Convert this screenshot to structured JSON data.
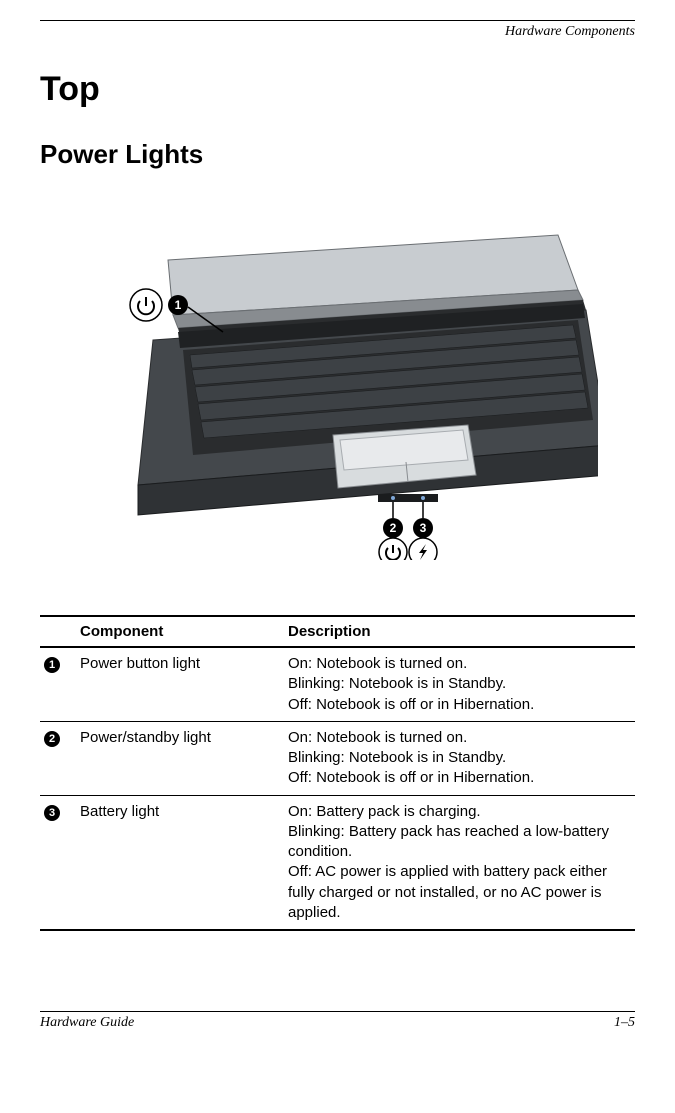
{
  "header": {
    "section_title": "Hardware Components"
  },
  "headings": {
    "h1": "Top",
    "h2": "Power Lights"
  },
  "diagram": {
    "callouts": {
      "c1": "1",
      "c2": "2",
      "c3": "3"
    },
    "icons": {
      "power": "⏻",
      "lightning": "⚡"
    }
  },
  "table": {
    "headers": {
      "component": "Component",
      "description": "Description"
    },
    "rows": [
      {
        "num": "1",
        "component": "Power button light",
        "description": "On: Notebook is turned on.\nBlinking: Notebook is in Standby.\nOff: Notebook is off or in Hibernation."
      },
      {
        "num": "2",
        "component": "Power/standby light",
        "description": "On: Notebook is turned on.\nBlinking: Notebook is in Standby.\nOff: Notebook is off or in Hibernation."
      },
      {
        "num": "3",
        "component": "Battery light",
        "description": "On: Battery pack is charging.\nBlinking: Battery pack has reached a low-battery condition.\nOff: AC power is applied with battery pack either fully charged or not installed, or no AC power is applied."
      }
    ]
  },
  "footer": {
    "left": "Hardware Guide",
    "right": "1–5"
  },
  "colors": {
    "laptop_dark": "#3a3e42",
    "laptop_mid": "#5a5e62",
    "laptop_light": "#c8ccd0",
    "laptop_silver": "#d8dcde",
    "screen": "#1a1c1e",
    "key": "#2f3235",
    "callout_bg": "#000000",
    "callout_fg": "#ffffff",
    "icon_stroke": "#000000"
  }
}
